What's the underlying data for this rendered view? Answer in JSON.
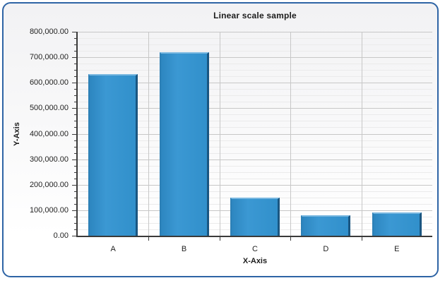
{
  "chart_data": {
    "type": "bar",
    "title": "Linear scale sample",
    "xlabel": "X-Axis",
    "ylabel": "Y-Axis",
    "categories": [
      "A",
      "B",
      "C",
      "D",
      "E"
    ],
    "values": [
      635000,
      720000,
      150000,
      81000,
      92000
    ],
    "ylim": [
      0,
      800000
    ],
    "y_major_step": 100000,
    "y_minor_step": 25000,
    "y_tick_labels": [
      "800,000.00",
      "700,000.00",
      "600,000.00",
      "500,000.00",
      "400,000.00",
      "300,000.00",
      "200,000.00",
      "100,000.00",
      "0.00"
    ],
    "grid": true,
    "legend": "none"
  },
  "colors": {
    "window_border": "#2E64A5",
    "bar_fill": "#3190CB",
    "bar_edge_dark": "#1A5681",
    "bar_edge_light": "#7AB8E0",
    "axis_line": "#3A3A3A",
    "grid_major": "#C7C7C7",
    "grid_minor": "#EBEBEB",
    "text": "#1C1C1C"
  }
}
